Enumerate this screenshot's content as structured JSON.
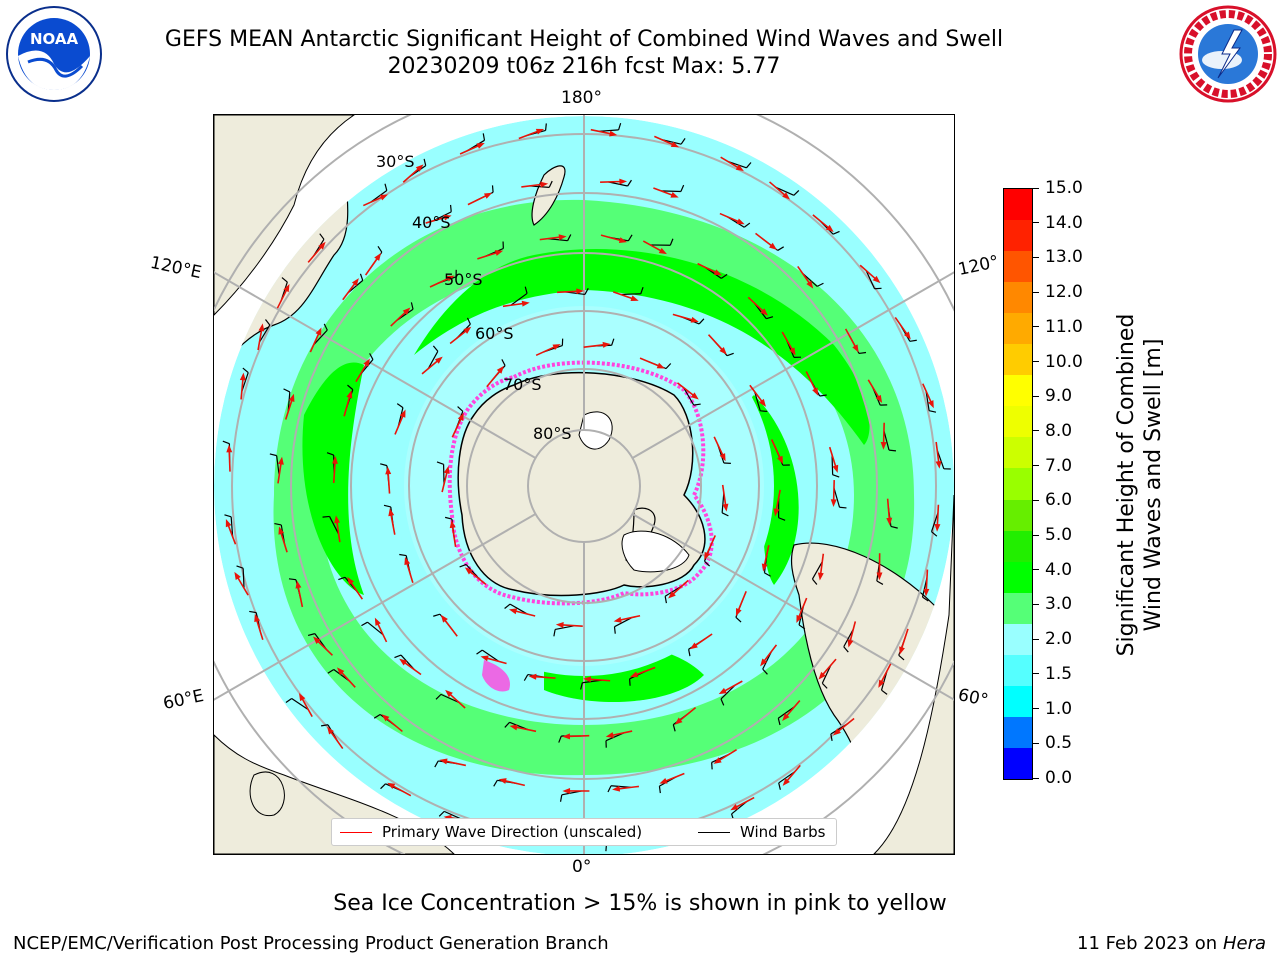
{
  "header": {
    "title_line1": "GEFS MEAN Antarctic Significant Height of Combined Wind Waves and Swell",
    "title_line2": "20230209 t06z 216h fcst   Max: 5.77"
  },
  "logos": {
    "left": "noaa-logo",
    "right": "nws-logo",
    "left_text": "NOAA"
  },
  "map": {
    "projection": "south-polar-stereographic",
    "center": "South Pole",
    "longitude_labels": {
      "top": "180°",
      "bottom": "0°",
      "upper_left": "120°E",
      "lower_left": "60°E",
      "upper_right": "120°",
      "lower_right": "60°"
    },
    "latitude_labels": [
      "30°S",
      "40°S",
      "50°S",
      "60°S",
      "70°S",
      "80°S"
    ],
    "colors": {
      "land": "#eeecdc",
      "ocean_lt2": "#99ffff",
      "ocean_2to3": "#55ff77",
      "ocean_3to4": "#00ff00",
      "ice_edge": "#ff44dd",
      "arrow": "#e8140a",
      "barb": "#000000",
      "grid": "#b0b0b0"
    }
  },
  "colorbar": {
    "label_line1": "Significant Height of Combined",
    "label_line2": "Wind Waves and Swell [m]",
    "ticks": [
      "15.0",
      "14.0",
      "13.0",
      "12.0",
      "11.0",
      "10.0",
      "9.0",
      "8.0",
      "7.0",
      "6.0",
      "5.0",
      "4.0",
      "3.0",
      "2.0",
      "1.5",
      "1.0",
      "0.5",
      "0.0"
    ],
    "colors": [
      "#0000ff",
      "#0077ff",
      "#00ffff",
      "#55ffff",
      "#99ffff",
      "#55ff77",
      "#00ff00",
      "#22ee00",
      "#66ee00",
      "#99ff00",
      "#ccff00",
      "#eeff00",
      "#ffff00",
      "#ffcc00",
      "#ffaa00",
      "#ff8800",
      "#ff5500",
      "#ff2200",
      "#ff0000"
    ]
  },
  "legend": {
    "wave_label": "Primary Wave Direction (unscaled)",
    "barb_label": "Wind Barbs",
    "wave_color": "#ff0000",
    "barb_color": "#000000"
  },
  "footer": {
    "note": "Sea Ice Concentration > 15% is shown in pink to yellow",
    "credit": "NCEP/EMC/Verification Post Processing Product Generation Branch",
    "date": "11 Feb 2023 on",
    "host": "Hera"
  }
}
